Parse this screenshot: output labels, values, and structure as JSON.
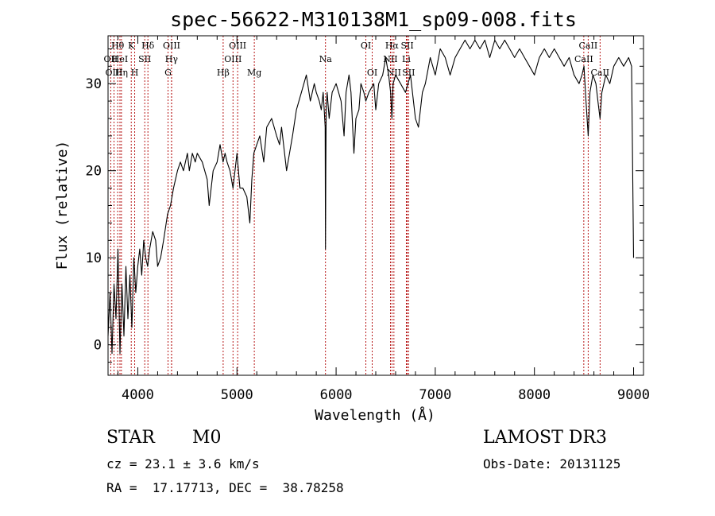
{
  "chart_data": {
    "type": "line",
    "title": "spec-56622-M310138M1_sp09-008.fits",
    "xlabel": "Wavelength (Å)",
    "ylabel": "Flux (relative)",
    "xlim": [
      3700,
      9100
    ],
    "ylim": [
      -3.5,
      35.5
    ],
    "xticks": [
      4000,
      5000,
      6000,
      7000,
      8000,
      9000
    ],
    "yticks": [
      0,
      10,
      20,
      30
    ],
    "grid": false,
    "series": [
      {
        "x": [
          3700,
          3720,
          3740,
          3760,
          3780,
          3800,
          3820,
          3840,
          3860,
          3880,
          3900,
          3920,
          3940,
          3960,
          3980,
          4000,
          4020,
          4040,
          4060,
          4080,
          4100,
          4120,
          4150,
          4180,
          4200,
          4230,
          4260,
          4300,
          4330,
          4360,
          4400,
          4430,
          4460,
          4500,
          4520,
          4550,
          4580,
          4600,
          4650,
          4700,
          4720,
          4760,
          4800,
          4830,
          4860,
          4880,
          4900,
          4930,
          4960,
          5000,
          5030,
          5060,
          5100,
          5130,
          5150,
          5170,
          5200,
          5230,
          5270,
          5300,
          5350,
          5400,
          5430,
          5450,
          5480,
          5500,
          5530,
          5560,
          5600,
          5650,
          5700,
          5740,
          5780,
          5800,
          5830,
          5850,
          5870,
          5880,
          5890,
          5893,
          5896,
          5900,
          5910,
          5930,
          5960,
          6000,
          6050,
          6080,
          6100,
          6130,
          6150,
          6180,
          6200,
          6230,
          6250,
          6280,
          6300,
          6330,
          6380,
          6400,
          6430,
          6470,
          6500,
          6530,
          6550,
          6563,
          6575,
          6600,
          6650,
          6700,
          6750,
          6800,
          6830,
          6850,
          6870,
          6900,
          6950,
          7000,
          7050,
          7100,
          7150,
          7200,
          7250,
          7300,
          7350,
          7400,
          7450,
          7500,
          7550,
          7600,
          7650,
          7700,
          7750,
          7800,
          7850,
          7900,
          7950,
          8000,
          8050,
          8100,
          8150,
          8200,
          8250,
          8300,
          8350,
          8400,
          8450,
          8480,
          8500,
          8520,
          8542,
          8560,
          8590,
          8620,
          8640,
          8662,
          8680,
          8720,
          8760,
          8800,
          8850,
          8900,
          8950,
          8980,
          9000
        ],
        "y": [
          1,
          6,
          -1,
          7,
          3,
          11,
          -1,
          7,
          1,
          9,
          3,
          8,
          2,
          10,
          6,
          9,
          11,
          8,
          12,
          10,
          9,
          11,
          13,
          12,
          9,
          10,
          12,
          15,
          16,
          18,
          20,
          21,
          20,
          22,
          20,
          22,
          21,
          22,
          21,
          19,
          16,
          20,
          21,
          23,
          21,
          22,
          21,
          20,
          18,
          22,
          18,
          18,
          17,
          14,
          19,
          22,
          23,
          24,
          21,
          25,
          26,
          24,
          23,
          25,
          22,
          20,
          22,
          24,
          27,
          29,
          31,
          28,
          30,
          29,
          28,
          27,
          29,
          27,
          25,
          11,
          20,
          27,
          29,
          26,
          29,
          30,
          28,
          24,
          29,
          31,
          29,
          22,
          26,
          27,
          30,
          29,
          28,
          29,
          30,
          27,
          30,
          31,
          33,
          31,
          29,
          26,
          30,
          31,
          30,
          29,
          31,
          26,
          25,
          27,
          29,
          30,
          33,
          31,
          34,
          33,
          31,
          33,
          34,
          35,
          34,
          35,
          34,
          35,
          33,
          35,
          34,
          35,
          34,
          33,
          34,
          33,
          32,
          31,
          33,
          34,
          33,
          34,
          33,
          32,
          33,
          31,
          30,
          31,
          32,
          28,
          24,
          29,
          31,
          30,
          28,
          26,
          29,
          31,
          30,
          32,
          33,
          32,
          33,
          32,
          10
        ]
      }
    ],
    "lines": [
      {
        "label": "Hθ",
        "x": 3797,
        "row": 1
      },
      {
        "label": "OII",
        "x": 3727,
        "row": 2
      },
      {
        "label": "OIII",
        "x": 3760,
        "row": 3
      },
      {
        "label": "HeI",
        "x": 3820,
        "row": 2
      },
      {
        "label": "Hη",
        "x": 3835,
        "row": 3
      },
      {
        "label": "K",
        "x": 3934,
        "row": 1
      },
      {
        "label": "H",
        "x": 3969,
        "row": 3
      },
      {
        "label": "SII",
        "x": 4070,
        "row": 2
      },
      {
        "label": "Hδ",
        "x": 4102,
        "row": 1
      },
      {
        "label": "OIII",
        "x": 4341,
        "row": 1
      },
      {
        "label": "Hγ",
        "x": 4340,
        "row": 2
      },
      {
        "label": "G",
        "x": 4305,
        "row": 3
      },
      {
        "label": "Hβ",
        "x": 4861,
        "row": 3
      },
      {
        "label": "OIII",
        "x": 5007,
        "row": 1
      },
      {
        "label": "OIII",
        "x": 4960,
        "row": 2
      },
      {
        "label": "Mg",
        "x": 5175,
        "row": 3
      },
      {
        "label": "Na",
        "x": 5893,
        "row": 2
      },
      {
        "label": "OI",
        "x": 6300,
        "row": 1
      },
      {
        "label": "OI",
        "x": 6364,
        "row": 3
      },
      {
        "label": "Hα",
        "x": 6563,
        "row": 1
      },
      {
        "label": "NII",
        "x": 6548,
        "row": 2
      },
      {
        "label": "NII",
        "x": 6583,
        "row": 3
      },
      {
        "label": "SII",
        "x": 6717,
        "row": 1
      },
      {
        "label": "Li",
        "x": 6708,
        "row": 2
      },
      {
        "label": "SII",
        "x": 6731,
        "row": 3
      },
      {
        "label": "CaII",
        "x": 8542,
        "row": 1
      },
      {
        "label": "CaII",
        "x": 8498,
        "row": 2
      },
      {
        "label": "CaII",
        "x": 8662,
        "row": 3
      }
    ],
    "line_color": "#b00000",
    "spectrum_color": "#000000"
  },
  "info": {
    "class_label": "STAR",
    "subclass": "M0",
    "survey": "LAMOST DR3",
    "velocity": "cz = 23.1 ± 3.6 km/s",
    "obs_date": "Obs-Date: 20131125",
    "coords": "RA =  17.17713, DEC =  38.78258"
  }
}
